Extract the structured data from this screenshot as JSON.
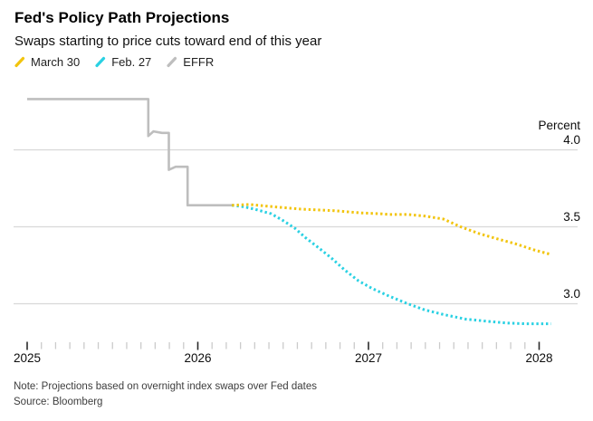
{
  "header": {
    "title": "Fed's Policy Path Projections",
    "subtitle": "Swaps starting to price cuts toward end of this year"
  },
  "legend": {
    "items": [
      {
        "label": "March 30",
        "color": "#F2C40D"
      },
      {
        "label": "Feb. 27",
        "color": "#2AD1E3"
      },
      {
        "label": "EFFR",
        "color": "#BEBEBE"
      }
    ]
  },
  "axes": {
    "y_title": "Percent",
    "y_ticks": [
      {
        "label": "4.0",
        "value": 4.0
      },
      {
        "label": "3.5",
        "value": 3.5
      },
      {
        "label": "3.0",
        "value": 3.0
      }
    ],
    "x_ticks": [
      {
        "label": "2025",
        "value": 2025
      },
      {
        "label": "2026",
        "value": 2026
      },
      {
        "label": "2027",
        "value": 2027
      },
      {
        "label": "2028",
        "value": 2028
      }
    ],
    "minor_ticks_per_year": 12
  },
  "footer": {
    "note": "Note: Projections based on overnight index swaps over Fed dates",
    "source": "Source: Bloomberg"
  },
  "colors": {
    "gridline": "#D8D8D8",
    "major_tick": "#2a2a2a",
    "minor_tick": "#cbcbcb",
    "background": "#ffffff"
  },
  "chart_data": {
    "type": "line",
    "title": "Fed's Policy Path Projections",
    "subtitle": "Swaps starting to price cuts toward end of this year",
    "xlabel": "",
    "ylabel": "Percent",
    "x_unit": "year (fractional)",
    "y_unit": "percent",
    "xlim": [
      2024.92,
      2028.23
    ],
    "ylim": [
      2.75,
      4.45
    ],
    "y_gridlines": [
      4.0,
      3.5,
      3.0
    ],
    "grid": true,
    "legend_position": "top",
    "series": [
      {
        "name": "March 30",
        "color": "#F2C40D",
        "style": "dotted",
        "points": [
          [
            2026.2,
            3.64
          ],
          [
            2026.3,
            3.645
          ],
          [
            2026.4,
            3.635
          ],
          [
            2026.5,
            3.625
          ],
          [
            2026.6,
            3.615
          ],
          [
            2026.7,
            3.61
          ],
          [
            2026.8,
            3.605
          ],
          [
            2026.9,
            3.595
          ],
          [
            2026.96,
            3.59
          ],
          [
            2027.07,
            3.585
          ],
          [
            2027.12,
            3.58
          ],
          [
            2027.23,
            3.58
          ],
          [
            2027.33,
            3.57
          ],
          [
            2027.44,
            3.55
          ],
          [
            2027.54,
            3.5
          ],
          [
            2027.65,
            3.455
          ],
          [
            2027.76,
            3.42
          ],
          [
            2027.86,
            3.39
          ],
          [
            2027.97,
            3.35
          ],
          [
            2028.07,
            3.32
          ]
        ]
      },
      {
        "name": "Feb. 27",
        "color": "#2AD1E3",
        "style": "dotted",
        "points": [
          [
            2026.2,
            3.64
          ],
          [
            2026.27,
            3.63
          ],
          [
            2026.33,
            3.615
          ],
          [
            2026.43,
            3.585
          ],
          [
            2026.5,
            3.54
          ],
          [
            2026.57,
            3.49
          ],
          [
            2026.63,
            3.43
          ],
          [
            2026.7,
            3.37
          ],
          [
            2026.78,
            3.3
          ],
          [
            2026.86,
            3.22
          ],
          [
            2026.94,
            3.15
          ],
          [
            2027.02,
            3.1
          ],
          [
            2027.12,
            3.05
          ],
          [
            2027.23,
            3.0
          ],
          [
            2027.33,
            2.96
          ],
          [
            2027.44,
            2.93
          ],
          [
            2027.57,
            2.9
          ],
          [
            2027.71,
            2.885
          ],
          [
            2027.81,
            2.875
          ],
          [
            2027.92,
            2.87
          ],
          [
            2028.0,
            2.87
          ],
          [
            2028.07,
            2.87
          ]
        ]
      },
      {
        "name": "EFFR",
        "color": "#BEBEBE",
        "style": "solid",
        "points": [
          [
            2025.0,
            4.33
          ],
          [
            2025.71,
            4.33
          ],
          [
            2025.71,
            4.09
          ],
          [
            2025.74,
            4.12
          ],
          [
            2025.79,
            4.11
          ],
          [
            2025.83,
            4.11
          ],
          [
            2025.83,
            3.87
          ],
          [
            2025.87,
            3.89
          ],
          [
            2025.94,
            3.89
          ],
          [
            2025.94,
            3.64
          ],
          [
            2026.21,
            3.64
          ]
        ]
      }
    ]
  }
}
